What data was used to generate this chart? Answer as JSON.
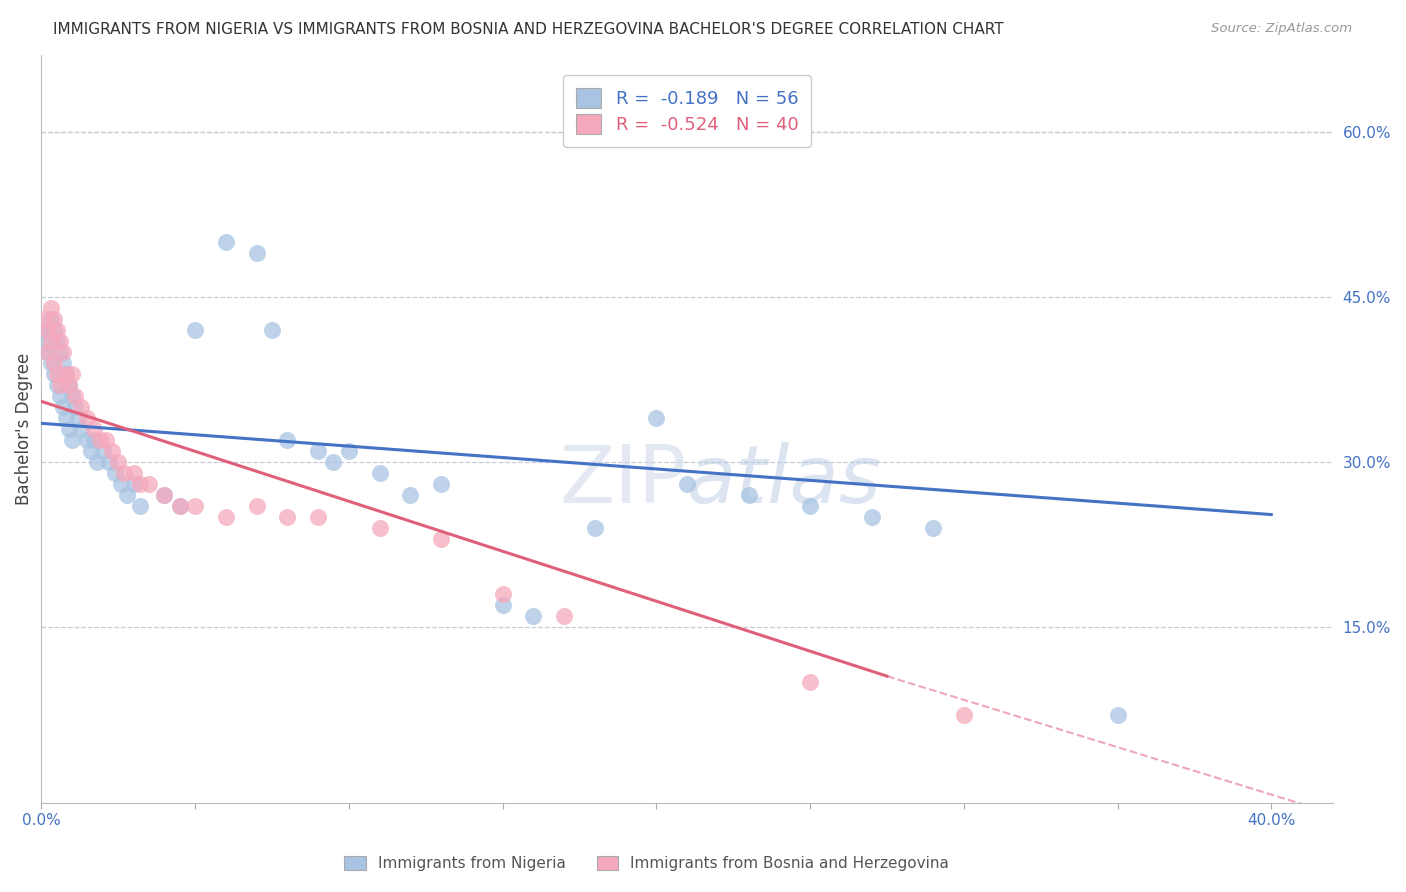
{
  "title": "IMMIGRANTS FROM NIGERIA VS IMMIGRANTS FROM BOSNIA AND HERZEGOVINA BACHELOR'S DEGREE CORRELATION CHART",
  "source": "Source: ZipAtlas.com",
  "ylabel": "Bachelor's Degree",
  "blue_R": "-0.189",
  "blue_N": "56",
  "pink_R": "-0.524",
  "pink_N": "40",
  "blue_color": "#a8c4e2",
  "pink_color": "#f5a8bc",
  "blue_line_color": "#4472c4",
  "pink_line_color": "#e0607a",
  "grid_color": "#c8ccd8",
  "background_color": "#ffffff",
  "xlim": [
    0.0,
    0.42
  ],
  "ylim": [
    -0.01,
    0.67
  ],
  "blue_line": {
    "x0": 0.0,
    "y0": 0.335,
    "x1": 0.4,
    "y1": 0.252
  },
  "pink_line_solid": {
    "x0": 0.0,
    "y0": 0.355,
    "x1": 0.275,
    "y1": 0.105
  },
  "pink_line_dash": {
    "x0": 0.275,
    "y0": 0.105,
    "x1": 0.42,
    "y1": -0.02
  },
  "nigeria_x": [
    0.001,
    0.002,
    0.002,
    0.003,
    0.003,
    0.004,
    0.004,
    0.005,
    0.005,
    0.006,
    0.006,
    0.007,
    0.007,
    0.008,
    0.008,
    0.009,
    0.009,
    0.01,
    0.01,
    0.011,
    0.012,
    0.013,
    0.015,
    0.016,
    0.017,
    0.018,
    0.02,
    0.022,
    0.024,
    0.026,
    0.028,
    0.03,
    0.032,
    0.04,
    0.045,
    0.05,
    0.06,
    0.07,
    0.075,
    0.08,
    0.09,
    0.095,
    0.1,
    0.11,
    0.12,
    0.13,
    0.15,
    0.16,
    0.18,
    0.2,
    0.21,
    0.23,
    0.25,
    0.27,
    0.29,
    0.35
  ],
  "nigeria_y": [
    0.42,
    0.41,
    0.4,
    0.43,
    0.39,
    0.42,
    0.38,
    0.41,
    0.37,
    0.4,
    0.36,
    0.39,
    0.35,
    0.38,
    0.34,
    0.37,
    0.33,
    0.36,
    0.32,
    0.35,
    0.34,
    0.33,
    0.32,
    0.31,
    0.32,
    0.3,
    0.31,
    0.3,
    0.29,
    0.28,
    0.27,
    0.28,
    0.26,
    0.27,
    0.26,
    0.42,
    0.5,
    0.49,
    0.42,
    0.32,
    0.31,
    0.3,
    0.31,
    0.29,
    0.27,
    0.28,
    0.17,
    0.16,
    0.24,
    0.34,
    0.28,
    0.27,
    0.26,
    0.25,
    0.24,
    0.07
  ],
  "bosnia_x": [
    0.001,
    0.002,
    0.002,
    0.003,
    0.003,
    0.004,
    0.004,
    0.005,
    0.005,
    0.006,
    0.006,
    0.007,
    0.008,
    0.009,
    0.01,
    0.011,
    0.013,
    0.015,
    0.017,
    0.019,
    0.021,
    0.023,
    0.025,
    0.027,
    0.03,
    0.032,
    0.035,
    0.04,
    0.045,
    0.05,
    0.06,
    0.07,
    0.08,
    0.09,
    0.11,
    0.13,
    0.15,
    0.17,
    0.25,
    0.3
  ],
  "bosnia_y": [
    0.43,
    0.42,
    0.4,
    0.44,
    0.41,
    0.43,
    0.39,
    0.42,
    0.38,
    0.41,
    0.37,
    0.4,
    0.38,
    0.37,
    0.38,
    0.36,
    0.35,
    0.34,
    0.33,
    0.32,
    0.32,
    0.31,
    0.3,
    0.29,
    0.29,
    0.28,
    0.28,
    0.27,
    0.26,
    0.26,
    0.25,
    0.26,
    0.25,
    0.25,
    0.24,
    0.23,
    0.18,
    0.16,
    0.1,
    0.07
  ],
  "yticks_right": [
    0.15,
    0.3,
    0.45,
    0.6
  ],
  "ytick_right_labels": [
    "15.0%",
    "30.0%",
    "45.0%",
    "60.0%"
  ],
  "xtick_color": "#4472c4",
  "ytick_color": "#4472c4"
}
